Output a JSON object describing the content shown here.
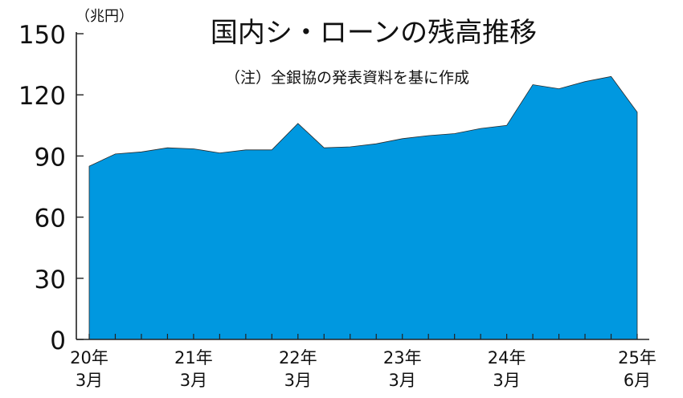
{
  "chart_data": {
    "type": "area",
    "title": "国内シ・ローンの残高推移",
    "subtitle": "（注）全銀協の発表資料を基に作成",
    "ylabel": "（兆円）",
    "xlabel": "",
    "ylim": [
      0,
      150
    ],
    "yticks": [
      0,
      30,
      60,
      90,
      120,
      150
    ],
    "grid": false,
    "fill_color": "#0098E0",
    "x_ticks": [
      {
        "index": 0,
        "line1": "20年",
        "line2": "3月"
      },
      {
        "index": 4,
        "line1": "21年",
        "line2": "3月"
      },
      {
        "index": 8,
        "line1": "22年",
        "line2": "3月"
      },
      {
        "index": 12,
        "line1": "23年",
        "line2": "3月"
      },
      {
        "index": 16,
        "line1": "24年",
        "line2": "3月"
      },
      {
        "index": 21,
        "line1": "25年",
        "line2": "6月"
      }
    ],
    "x_count": 22,
    "values": [
      85,
      91,
      92,
      94,
      93.5,
      91.5,
      93,
      93,
      106,
      94,
      94.5,
      96,
      98.5,
      100,
      101,
      103.5,
      105,
      125,
      123,
      126.5,
      129,
      111.5
    ]
  }
}
